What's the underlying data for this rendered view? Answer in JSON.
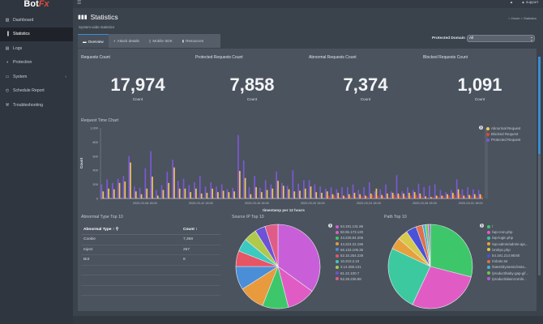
{
  "app": {
    "logo_main": "Bot",
    "logo_accent": "Fx"
  },
  "topbar": {
    "user_label": "support"
  },
  "sidebar": {
    "items": [
      {
        "label": "Dashboard",
        "icon": "dashboard-icon",
        "glyph": "▧"
      },
      {
        "label": "Statistics",
        "icon": "bar-chart-icon",
        "glyph": "▐",
        "active": true
      },
      {
        "label": "Logs",
        "icon": "file-icon",
        "glyph": "▤"
      },
      {
        "label": "Protection",
        "icon": "shield-icon",
        "glyph": "◖"
      },
      {
        "label": "System",
        "icon": "monitor-icon",
        "glyph": "▭",
        "has_submenu": true
      },
      {
        "label": "Schedule Report",
        "icon": "clock-icon",
        "glyph": "◴"
      },
      {
        "label": "Troubleshooting",
        "icon": "wrench-icon",
        "glyph": "⚒"
      }
    ]
  },
  "header": {
    "title": "Statistics",
    "subtitle": "System-wide statistics",
    "breadcrumb": "Home > Statistics"
  },
  "tabs": [
    {
      "label": "Overview",
      "active": true
    },
    {
      "label": "Attack details"
    },
    {
      "label": "Mobile SDK"
    },
    {
      "label": "Resources"
    }
  ],
  "filter": {
    "label": "Protected Domain",
    "value": "All"
  },
  "stats": [
    {
      "label": "Requests Count",
      "value": "17,974",
      "unit": "Count"
    },
    {
      "label": "Protected Requests Count",
      "value": "7,858",
      "unit": "Count"
    },
    {
      "label": "Abnormal Requests Count",
      "value": "7,374",
      "unit": "Count"
    },
    {
      "label": "Blocked Requests Count",
      "value": "1,091",
      "unit": "Count"
    }
  ],
  "colors": {
    "abnormal": "#f3c65f",
    "blocked": "#e2462f",
    "protected": "#7b58d6",
    "accent": "#3a8ed0"
  },
  "table": {
    "title": "Abnormal Type Top 10",
    "headers": [
      "Abnormal Type",
      "Count"
    ],
    "rows": [
      [
        "Cookie",
        "7,358"
      ],
      [
        "Inject",
        "257"
      ],
      [
        "Bot",
        "8"
      ]
    ]
  },
  "chart_data": [
    {
      "type": "bar",
      "title": "Request Time Chart",
      "xlabel": "timestamp per 12 hours",
      "ylabel": "Count",
      "ylim": [
        0,
        1000
      ],
      "yticks": [
        "0",
        "200",
        "400",
        "600",
        "800",
        "1,000"
      ],
      "xticks": [
        "2020-03-08 18:00",
        "2020-03-12 18:00",
        "2020-03-16 18:00",
        "2020-03-20 18:00",
        "2020-03-24 18:00",
        "2020-03-28 18:00",
        "2020-03-31 18:00"
      ],
      "legend_position": "top-right",
      "series": [
        {
          "name": "Abnormal Request",
          "color": "#f3c65f",
          "values": [
            100,
            140,
            130,
            220,
            240,
            510,
            100,
            60,
            140,
            310,
            40,
            120,
            220,
            440,
            140,
            140,
            90,
            140,
            70,
            80,
            140,
            90,
            110,
            90,
            100,
            390,
            290,
            60,
            160,
            90,
            120,
            140,
            250,
            180,
            130,
            100,
            110,
            140,
            170,
            90,
            80,
            100,
            60,
            80,
            40,
            60,
            80,
            60,
            40,
            70,
            140,
            50,
            70,
            80,
            70,
            70,
            80,
            90,
            70,
            30,
            20,
            40,
            40,
            60,
            80,
            130,
            40,
            50,
            60,
            60
          ]
        },
        {
          "name": "Blocked Request",
          "color": "#e2462f",
          "values": [
            0,
            0,
            0,
            0,
            0,
            0,
            0,
            0,
            0,
            0,
            0,
            0,
            0,
            0,
            0,
            0,
            0,
            0,
            0,
            0,
            0,
            0,
            0,
            0,
            0,
            0,
            0,
            0,
            0,
            0,
            0,
            0,
            0,
            0,
            0,
            0,
            0,
            0,
            0,
            0,
            0,
            40,
            40,
            20,
            20,
            30,
            20,
            30,
            30,
            50,
            40,
            30,
            20,
            50,
            40,
            30,
            40,
            50,
            30,
            10,
            20,
            30,
            30,
            40,
            50,
            60,
            20,
            40,
            30,
            40
          ]
        },
        {
          "name": "Protected Request",
          "color": "#7b58d6",
          "values": [
            200,
            270,
            220,
            280,
            320,
            600,
            170,
            150,
            430,
            670,
            120,
            190,
            380,
            550,
            250,
            280,
            190,
            230,
            320,
            170,
            230,
            170,
            200,
            130,
            150,
            900,
            540,
            160,
            320,
            150,
            260,
            200,
            380,
            220,
            180,
            400,
            210,
            260,
            260,
            200,
            170,
            140,
            160,
            130,
            160,
            160,
            200,
            120,
            160,
            230,
            100,
            130,
            200,
            100,
            330,
            100,
            160,
            120,
            210,
            160,
            180,
            200,
            120,
            90,
            120,
            270,
            130,
            160,
            130,
            120
          ]
        }
      ]
    },
    {
      "type": "pie",
      "title": "Source IP Top 10",
      "legend_position": "right",
      "labels": [
        "54.191.131.86",
        "50.55.173.120",
        "44.225.84.206",
        "44.224.22.196",
        "66.133.109.36",
        "52.15.254.228",
        "10.210.2.10",
        "3.14.255.131",
        "81.22.100.7",
        "52.28.236.88"
      ],
      "colors": [
        "#c95fd8",
        "#e05cc4",
        "#3dc76a",
        "#e89a3c",
        "#4a8ed8",
        "#e55566",
        "#3cc9c2",
        "#b0c94a",
        "#6b52d6",
        "#e05c88"
      ],
      "values": [
        35,
        11,
        10,
        10,
        9,
        6,
        5,
        5,
        4,
        5
      ]
    },
    {
      "type": "pie",
      "title": "Path Top 10",
      "legend_position": "right",
      "labels": [
        "/",
        "/wp-cron.php",
        "/wp-login.php",
        "/wp-admin/admin-aja...",
        "/xmlrpc.php",
        "54.191.214.98:80",
        "/robots.txt",
        "/latest/dynamic/insta...",
        "/product/baby-gap-gif...",
        "/product/abercrombi..."
      ],
      "colors": [
        "#3dc76a",
        "#e05cc4",
        "#3cc9a0",
        "#e8a03c",
        "#d8c94a",
        "#4a52d8",
        "#e0704a",
        "#4ab2d8",
        "#6ac94a",
        "#b05cd8"
      ],
      "values": [
        29,
        28,
        25,
        4.5,
        4,
        4,
        2.5,
        1.2,
        1,
        0.8
      ]
    }
  ]
}
